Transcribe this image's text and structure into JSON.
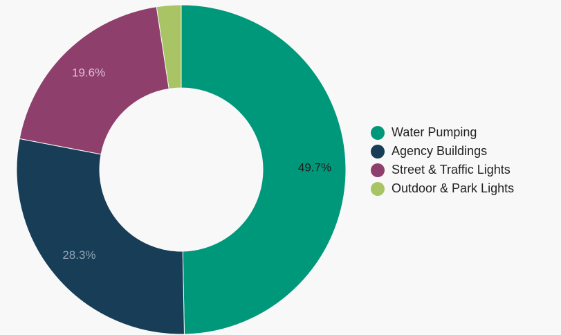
{
  "chart_data": {
    "type": "pie",
    "donut": true,
    "slices": [
      {
        "label": "Water Pumping",
        "value": 49.7,
        "display": "49.7%",
        "color": "#00987a",
        "label_color": "#1b1b1b"
      },
      {
        "label": "Agency Buildings",
        "value": 28.3,
        "display": "28.3%",
        "color": "#173d57",
        "label_color": "#8fa3b3"
      },
      {
        "label": "Street & Traffic Lights",
        "value": 19.6,
        "display": "19.6%",
        "color": "#8f3f6c",
        "label_color": "#dcc0d0"
      },
      {
        "label": "Outdoor & Park Lights",
        "value": 2.4,
        "display": "",
        "color": "#a8c464",
        "label_color": "#1b1b1b"
      }
    ],
    "legend_position": "right"
  }
}
